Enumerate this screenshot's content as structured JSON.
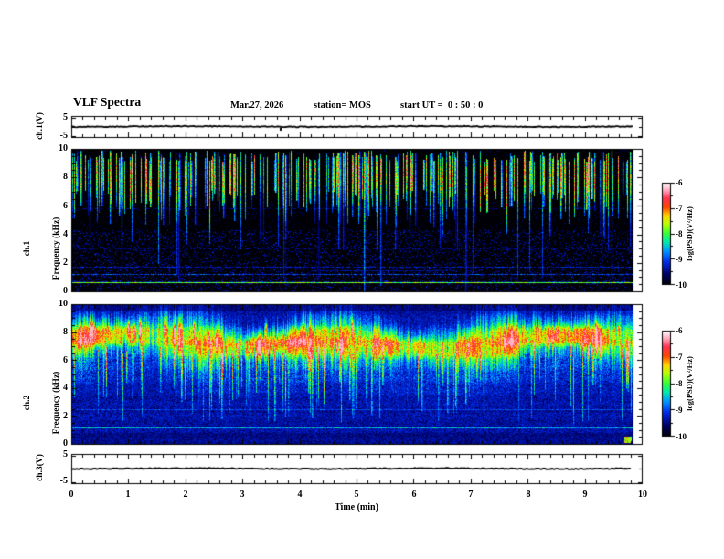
{
  "header": {
    "title": "VLF Spectra",
    "date": "Mar.27, 2026",
    "station": "station= MOS",
    "start_ut": "start UT =  0 : 50 : 0"
  },
  "axes": {
    "time": {
      "label": "Time (min)",
      "ticks": [
        "0",
        "1",
        "2",
        "3",
        "4",
        "5",
        "6",
        "7",
        "8",
        "9",
        "10"
      ]
    },
    "volt_ch1": {
      "label": "ch.1(V)",
      "tick_top": "5",
      "tick_bottom": "-5"
    },
    "freq_ch1": {
      "line1": "ch.1",
      "line2": "Frequency (kHz)",
      "ticks": [
        "0",
        "2",
        "4",
        "6",
        "8",
        "10"
      ]
    },
    "freq_ch2": {
      "line1": "ch.2",
      "line2": "Frequency (kHz)",
      "ticks": [
        "0",
        "2",
        "4",
        "6",
        "8",
        "10"
      ]
    },
    "volt_ch3": {
      "label": "ch.3(V)",
      "tick_top": "5",
      "tick_bottom": "-5"
    }
  },
  "colorbar": {
    "label": "log(PSD)(V²/Hz)",
    "ticks": [
      "-6",
      "-7",
      "-8",
      "-9",
      "-10"
    ]
  },
  "chart_data": [
    {
      "type": "line",
      "name": "ch.1 voltage waveform",
      "xlim_min": [
        0,
        10
      ],
      "ylim_v": [
        -5,
        5
      ],
      "value_v": 0,
      "description": "flat trace at 0 V with tiny noise, one small negative blip near 3.7 min",
      "data_end_min": 9.84
    },
    {
      "type": "heatmap",
      "name": "ch.1 VLF spectrogram",
      "xlabel": "Time (min)",
      "ylabel": "Frequency (kHz)",
      "xlim_min": [
        0,
        10
      ],
      "ylim_khz": [
        0,
        10
      ],
      "zlim_log_psd": [
        -10,
        -6
      ],
      "background_log_psd": -10,
      "impulse_streaks": {
        "count": 250,
        "top_khz": [
          9.1,
          9.9
        ],
        "typical_bottom_khz": [
          4.6,
          7.2
        ],
        "deep_fraction": 0.2
      },
      "carrier_lines": [
        {
          "f_khz": 0.65,
          "level": 0.45
        },
        {
          "f_khz": 1.25,
          "level": 0.17
        },
        {
          "f_khz": 1.7,
          "level": 0.13
        },
        {
          "f_khz": 3.0,
          "level": 0.09
        },
        {
          "f_khz": 5.85,
          "level": 0.09
        }
      ],
      "full_height_events": [
        {
          "t_min": 5.2,
          "bottom_khz": 0.05,
          "amp": 0.6
        },
        {
          "t_min": 7.0,
          "bottom_khz": 0.05,
          "amp": 0.34
        },
        {
          "t_min": 1.55,
          "bottom_khz": 2.0,
          "amp": 0.55
        },
        {
          "t_min": 2.05,
          "bottom_khz": 3.4,
          "amp": 0.5
        },
        {
          "t_min": 3.0,
          "bottom_khz": 3.0,
          "amp": 0.45
        },
        {
          "t_min": 8.37,
          "bottom_khz": 1.0,
          "amp": 0.42
        }
      ],
      "data_end_min": 9.84
    },
    {
      "type": "heatmap",
      "name": "ch.2 VLF spectrogram",
      "xlabel": "Time (min)",
      "ylabel": "Frequency (kHz)",
      "xlim_min": [
        0,
        10
      ],
      "ylim_khz": [
        0,
        10
      ],
      "zlim_log_psd": [
        -10,
        -6
      ],
      "background_log_psd": -9.4,
      "band": {
        "range_khz": [
          5.5,
          9.3
        ],
        "center_khz": 7.35,
        "peak_log_psd": -6.8
      },
      "carrier_lines": [
        {
          "f_khz": 1.2,
          "level": 0.15
        },
        {
          "f_khz": 2.5,
          "level": 0.07
        }
      ],
      "down_streaks": {
        "count": 100,
        "bottom_khz": [
          1.5,
          4.8
        ]
      },
      "hot_spots": {
        "count": 28,
        "center_khz": [
          6.6,
          8.4
        ]
      },
      "data_end_min": 9.84
    },
    {
      "type": "line",
      "name": "ch.3 voltage waveform",
      "xlim_min": [
        0,
        10
      ],
      "ylim_v": [
        -5,
        5
      ],
      "value_v": 0,
      "description": "flat trace at 0 V with tiny noise",
      "data_end_min": 9.8
    }
  ]
}
